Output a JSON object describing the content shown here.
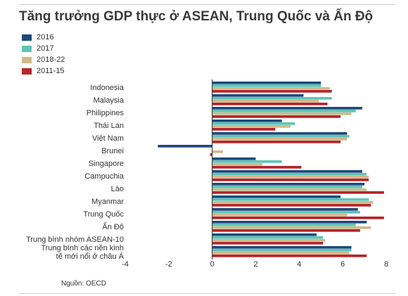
{
  "title": "Tăng trưởng GDP thực ở ASEAN, Trung Quốc và Ấn Độ",
  "source": "Nguồn: OECD",
  "colors": {
    "s2016": "#1d4a7a",
    "s2017": "#5fc4b8",
    "s2018_22": "#cfb98a",
    "s2011_15": "#b5252c",
    "axis": "#222222",
    "text": "#333333"
  },
  "chart_data": {
    "type": "bar",
    "orientation": "horizontal",
    "title": "Tăng trưởng GDP thực ở ASEAN, Trung Quốc và Ấn Độ",
    "xlim": [
      -4,
      8
    ],
    "xticks": [
      "-4",
      "-2",
      "0",
      "2",
      "4",
      "6",
      "8"
    ],
    "xtick_values": [
      -4,
      -2,
      0,
      2,
      4,
      6,
      8
    ],
    "legend_position": "top-left",
    "categories": [
      "Indonesia",
      "Malaysia",
      "Philippines",
      "Thái Lan",
      "Việt Nam",
      "Brunei",
      "Singapore",
      "Campuchia",
      "Lào",
      "Myanmar",
      "Trung Quốc",
      "Ấn Độ",
      "Trung bình nhóm ASEAN-10",
      "Trung bình các nền kinh tế mới nổi ở châu Á"
    ],
    "series": [
      {
        "name": "2016",
        "values": [
          5.0,
          4.2,
          6.9,
          3.2,
          6.2,
          -2.5,
          2.0,
          6.9,
          7.0,
          5.9,
          6.7,
          7.1,
          4.8,
          6.4
        ]
      },
      {
        "name": "2017",
        "values": [
          5.0,
          5.5,
          6.6,
          3.8,
          6.3,
          0.0,
          3.2,
          7.1,
          6.9,
          7.2,
          6.8,
          6.6,
          5.1,
          6.4
        ]
      },
      {
        "name": "2018-22",
        "values": [
          5.4,
          4.9,
          6.4,
          3.6,
          6.2,
          0.5,
          2.3,
          7.2,
          7.1,
          7.4,
          6.2,
          7.3,
          5.2,
          6.3
        ]
      },
      {
        "name": "2011-15",
        "values": [
          5.5,
          5.3,
          5.9,
          2.9,
          5.9,
          -0.1,
          4.1,
          7.2,
          7.9,
          7.3,
          7.9,
          6.8,
          5.1,
          7.1
        ]
      }
    ]
  }
}
